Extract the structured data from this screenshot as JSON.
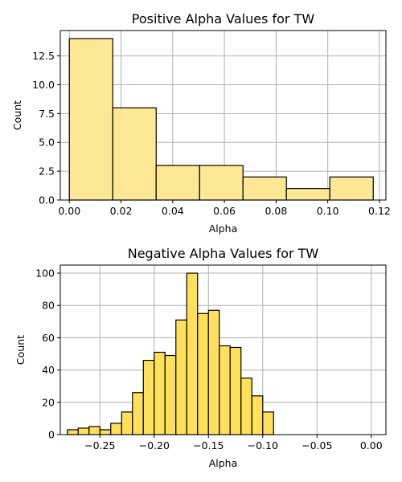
{
  "chart_data": [
    {
      "type": "bar",
      "title": "Positive Alpha Values for TW",
      "xlabel": "Alpha",
      "ylabel": "Count",
      "bar_color": "#ffe895",
      "grid": true,
      "xlim": [
        -0.0035,
        0.1225
      ],
      "ylim": [
        0,
        14.7
      ],
      "xticks": [
        0.0,
        0.02,
        0.04,
        0.06,
        0.08,
        0.1,
        0.12
      ],
      "xtick_labels": [
        "0.00",
        "0.02",
        "0.04",
        "0.06",
        "0.08",
        "0.10",
        "0.12"
      ],
      "yticks": [
        0.0,
        2.5,
        5.0,
        7.5,
        10.0,
        12.5
      ],
      "ytick_labels": [
        "0.0",
        "2.5",
        "5.0",
        "7.5",
        "10.0",
        "12.5"
      ],
      "bins": [
        {
          "x0": 0.0,
          "x1": 0.0168,
          "count": 14
        },
        {
          "x0": 0.0168,
          "x1": 0.0336,
          "count": 8
        },
        {
          "x0": 0.0336,
          "x1": 0.0504,
          "count": 3
        },
        {
          "x0": 0.0504,
          "x1": 0.0672,
          "count": 3
        },
        {
          "x0": 0.0672,
          "x1": 0.084,
          "count": 2
        },
        {
          "x0": 0.084,
          "x1": 0.1008,
          "count": 1
        },
        {
          "x0": 0.1008,
          "x1": 0.1176,
          "count": 2
        }
      ]
    },
    {
      "type": "bar",
      "title": "Negative Alpha Values for TW",
      "xlabel": "Alpha",
      "ylabel": "Count",
      "bar_color": "#ffe05a",
      "grid": true,
      "xlim": [
        -0.2865,
        0.0135
      ],
      "ylim": [
        0,
        105
      ],
      "xticks": [
        -0.25,
        -0.2,
        -0.15,
        -0.1,
        -0.05,
        0.0
      ],
      "xtick_labels": [
        "−0.25",
        "−0.20",
        "−0.15",
        "−0.10",
        "−0.05",
        "0.00"
      ],
      "yticks": [
        0,
        20,
        40,
        60,
        80,
        100
      ],
      "ytick_labels": [
        "0",
        "20",
        "40",
        "60",
        "80",
        "100"
      ],
      "bins": [
        {
          "x0": -0.28,
          "x1": -0.27,
          "count": 3
        },
        {
          "x0": -0.27,
          "x1": -0.26,
          "count": 4
        },
        {
          "x0": -0.26,
          "x1": -0.25,
          "count": 5
        },
        {
          "x0": -0.25,
          "x1": -0.24,
          "count": 3
        },
        {
          "x0": -0.24,
          "x1": -0.23,
          "count": 7
        },
        {
          "x0": -0.23,
          "x1": -0.22,
          "count": 14
        },
        {
          "x0": -0.22,
          "x1": -0.21,
          "count": 26
        },
        {
          "x0": -0.21,
          "x1": -0.2,
          "count": 46
        },
        {
          "x0": -0.2,
          "x1": -0.19,
          "count": 51
        },
        {
          "x0": -0.19,
          "x1": -0.18,
          "count": 49
        },
        {
          "x0": -0.18,
          "x1": -0.17,
          "count": 71
        },
        {
          "x0": -0.17,
          "x1": -0.16,
          "count": 100
        },
        {
          "x0": -0.16,
          "x1": -0.15,
          "count": 75
        },
        {
          "x0": -0.15,
          "x1": -0.14,
          "count": 77
        },
        {
          "x0": -0.14,
          "x1": -0.13,
          "count": 55
        },
        {
          "x0": -0.13,
          "x1": -0.12,
          "count": 54
        },
        {
          "x0": -0.12,
          "x1": -0.11,
          "count": 35
        },
        {
          "x0": -0.11,
          "x1": -0.1,
          "count": 24
        },
        {
          "x0": -0.1,
          "x1": -0.09,
          "count": 14
        }
      ]
    }
  ]
}
